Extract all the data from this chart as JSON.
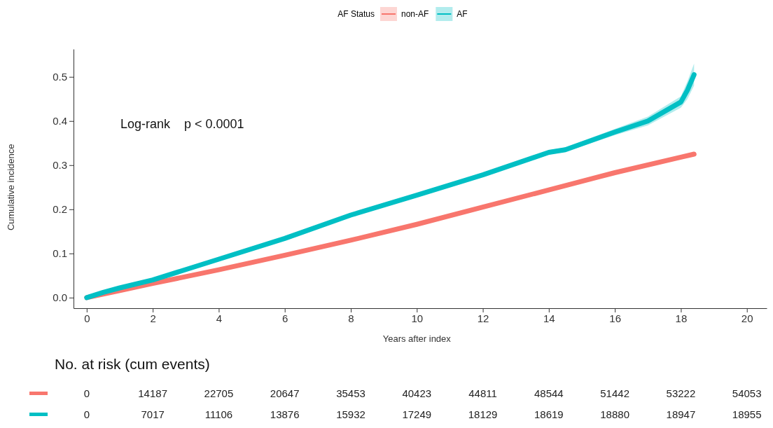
{
  "chart_data": [
    {
      "type": "line",
      "xlabel": "Years after index",
      "ylabel": "Cumulative incidence",
      "legend_title": "AF Status",
      "legend": "top",
      "xlim": [
        -0.4,
        20.6
      ],
      "ylim": [
        -0.024,
        0.563
      ],
      "xticks": [
        0,
        2,
        4,
        6,
        8,
        10,
        12,
        14,
        16,
        18,
        20
      ],
      "yticks": [
        {
          "value": 0,
          "label": "0.0"
        },
        0.1,
        0.2,
        0.3,
        0.4,
        0.5
      ],
      "annotations": [
        "Log-rank    p < 0.0001"
      ],
      "series": [
        {
          "name": "non-AF",
          "color": "#f8766d",
          "x": [
            0,
            1,
            2,
            4,
            6,
            8,
            10,
            12,
            14,
            16,
            18,
            18.4
          ],
          "values": [
            0,
            0.016,
            0.032,
            0.063,
            0.096,
            0.13,
            0.166,
            0.205,
            0.244,
            0.283,
            0.318,
            0.325
          ]
        },
        {
          "name": "AF",
          "color": "#00bfc4",
          "x": [
            0,
            0.5,
            1,
            2,
            4,
            6,
            8,
            10,
            12,
            14,
            14.5,
            16,
            17,
            18,
            18.2,
            18.4
          ],
          "values": [
            0,
            0.012,
            0.022,
            0.04,
            0.087,
            0.134,
            0.187,
            0.232,
            0.278,
            0.329,
            0.335,
            0.375,
            0.4,
            0.443,
            0.47,
            0.505
          ],
          "lower": [
            0,
            0.011,
            0.021,
            0.038,
            0.085,
            0.131,
            0.184,
            0.229,
            0.274,
            0.324,
            0.33,
            0.368,
            0.39,
            0.43,
            0.45,
            0.48
          ],
          "upper": [
            0,
            0.013,
            0.023,
            0.042,
            0.089,
            0.137,
            0.19,
            0.235,
            0.282,
            0.334,
            0.34,
            0.382,
            0.41,
            0.456,
            0.49,
            0.53
          ]
        }
      ]
    },
    {
      "type": "heatmap",
      "title": "No. at risk (cum events)",
      "categories": [
        null,
        null,
        null,
        null,
        null,
        null,
        null,
        null,
        null,
        null,
        null
      ],
      "y_categories": [
        null,
        null
      ],
      "cells": [
        [
          0,
          14187,
          22705,
          20647,
          35453,
          40423,
          44811,
          48544,
          51442,
          53222,
          54053
        ],
        [
          0,
          7017,
          11106,
          13876,
          15932,
          17249,
          18129,
          18619,
          18880,
          18947,
          18955
        ]
      ],
      "data_labels": true
    }
  ]
}
